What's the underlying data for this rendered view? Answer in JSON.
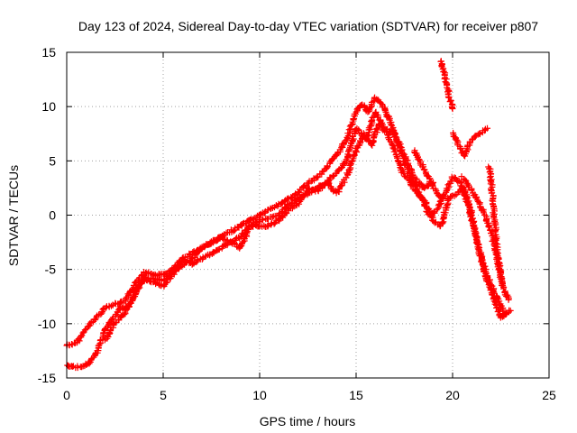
{
  "chart_data": {
    "type": "scatter",
    "title": "Day 123 of 2024, Sidereal Day-to-day VTEC variation (SDTVAR) for receiver p807",
    "xlabel": "GPS time / hours",
    "ylabel": "SDTVAR / TECUs",
    "xlim": [
      0,
      25
    ],
    "ylim": [
      -15,
      15
    ],
    "xticks": [
      "0",
      "5",
      "10",
      "15",
      "20",
      "25"
    ],
    "yticks": [
      "15",
      "10",
      "5",
      "0",
      "-5",
      "-10",
      "-15"
    ],
    "grid": true,
    "marker": "+",
    "color": "#ff0000",
    "series": [
      {
        "points": [
          [
            0.0,
            -12.0
          ],
          [
            0.5,
            -11.8
          ],
          [
            1.0,
            -10.5
          ],
          [
            1.5,
            -9.5
          ],
          [
            2.0,
            -8.5
          ],
          [
            2.5,
            -8.2
          ],
          [
            3.0,
            -8.0
          ],
          [
            3.5,
            -6.5
          ],
          [
            4.0,
            -5.2
          ],
          [
            4.5,
            -5.5
          ],
          [
            5.0,
            -5.5
          ],
          [
            5.5,
            -5.0
          ],
          [
            6.0,
            -4.0
          ],
          [
            6.5,
            -3.5
          ],
          [
            7.0,
            -3.0
          ],
          [
            7.5,
            -2.5
          ],
          [
            8.0,
            -2.0
          ],
          [
            8.5,
            -1.5
          ],
          [
            9.0,
            -1.0
          ],
          [
            9.5,
            -0.5
          ],
          [
            10.0,
            0.0
          ],
          [
            10.5,
            0.5
          ],
          [
            11.0,
            1.0
          ],
          [
            11.5,
            1.5
          ],
          [
            12.0,
            2.0
          ],
          [
            12.5,
            3.0
          ],
          [
            13.0,
            3.5
          ],
          [
            13.5,
            4.5
          ],
          [
            14.0,
            5.5
          ],
          [
            14.5,
            7.0
          ],
          [
            15.0,
            9.5
          ],
          [
            15.3,
            10.2
          ],
          [
            15.6,
            9.5
          ],
          [
            16.0,
            10.8
          ],
          [
            16.4,
            10.0
          ],
          [
            16.8,
            8.5
          ],
          [
            17.2,
            6.5
          ],
          [
            17.6,
            4.5
          ],
          [
            18.0,
            3.0
          ],
          [
            18.4,
            1.5
          ],
          [
            18.8,
            0.0
          ],
          [
            19.2,
            0.5
          ],
          [
            19.6,
            2.0
          ],
          [
            20.0,
            3.5
          ],
          [
            20.4,
            3.0
          ],
          [
            20.8,
            1.0
          ],
          [
            21.2,
            -2.0
          ],
          [
            21.6,
            -4.5
          ],
          [
            22.0,
            -6.5
          ],
          [
            22.4,
            -8.0
          ],
          [
            22.7,
            -9.2
          ],
          [
            23.0,
            -8.8
          ]
        ]
      },
      {
        "points": [
          [
            0.0,
            -13.8
          ],
          [
            0.4,
            -14.0
          ],
          [
            0.8,
            -14.0
          ],
          [
            1.2,
            -13.6
          ],
          [
            1.6,
            -12.5
          ],
          [
            2.0,
            -10.5
          ],
          [
            2.4,
            -9.5
          ],
          [
            2.8,
            -8.5
          ],
          [
            3.2,
            -8.5
          ],
          [
            3.6,
            -6.8
          ],
          [
            4.0,
            -6.0
          ],
          [
            4.5,
            -6.2
          ],
          [
            5.0,
            -6.5
          ],
          [
            5.5,
            -5.5
          ],
          [
            6.0,
            -4.2
          ],
          [
            6.5,
            -4.5
          ],
          [
            7.0,
            -4.0
          ],
          [
            7.5,
            -3.5
          ],
          [
            8.0,
            -3.0
          ],
          [
            8.5,
            -2.5
          ],
          [
            9.0,
            -2.0
          ],
          [
            9.5,
            -1.0
          ],
          [
            10.0,
            -1.0
          ],
          [
            10.5,
            -1.0
          ],
          [
            11.0,
            -0.5
          ],
          [
            11.5,
            0.5
          ],
          [
            12.0,
            1.0
          ],
          [
            12.5,
            2.5
          ],
          [
            13.0,
            2.2
          ],
          [
            13.5,
            3.0
          ],
          [
            14.0,
            2.0
          ],
          [
            14.5,
            3.5
          ],
          [
            15.0,
            6.0
          ],
          [
            15.4,
            7.5
          ],
          [
            15.8,
            6.5
          ],
          [
            16.2,
            8.5
          ],
          [
            16.6,
            7.5
          ],
          [
            17.0,
            6.0
          ],
          [
            17.4,
            4.0
          ],
          [
            17.8,
            3.0
          ],
          [
            18.2,
            2.0
          ],
          [
            18.6,
            1.2
          ],
          [
            19.0,
            -0.5
          ],
          [
            19.4,
            -1.0
          ],
          [
            19.8,
            1.5
          ],
          [
            20.2,
            2.0
          ],
          [
            20.6,
            2.5
          ],
          [
            21.0,
            0.0
          ],
          [
            21.4,
            -3.5
          ],
          [
            21.8,
            -6.0
          ],
          [
            22.2,
            -8.0
          ],
          [
            22.5,
            -9.5
          ],
          [
            22.8,
            -9.0
          ]
        ]
      },
      {
        "points": [
          [
            2.0,
            -11.5
          ],
          [
            2.5,
            -10.0
          ],
          [
            3.0,
            -9.0
          ],
          [
            3.5,
            -7.5
          ],
          [
            4.0,
            -5.8
          ],
          [
            5.0,
            -6.0
          ],
          [
            5.5,
            -5.2
          ],
          [
            6.5,
            -4.0
          ],
          [
            7.0,
            -3.0
          ],
          [
            7.5,
            -2.5
          ],
          [
            8.0,
            -2.0
          ],
          [
            8.5,
            -2.5
          ],
          [
            9.0,
            -3.0
          ],
          [
            9.5,
            -1.0
          ],
          [
            10.0,
            -0.5
          ],
          [
            11.0,
            0.0
          ],
          [
            11.5,
            1.0
          ],
          [
            12.0,
            1.5
          ],
          [
            12.5,
            2.0
          ],
          [
            13.0,
            2.5
          ],
          [
            13.5,
            3.0
          ],
          [
            14.0,
            4.0
          ],
          [
            14.5,
            5.0
          ],
          [
            15.0,
            8.0
          ],
          [
            15.5,
            7.0
          ],
          [
            16.0,
            9.5
          ],
          [
            16.5,
            8.0
          ],
          [
            17.0,
            7.5
          ],
          [
            17.5,
            5.5
          ],
          [
            18.0,
            3.5
          ],
          [
            18.5,
            2.5
          ],
          [
            19.0,
            3.0
          ]
        ]
      },
      {
        "points": [
          [
            18.0,
            6.0
          ],
          [
            18.3,
            5.0
          ],
          [
            18.6,
            4.0
          ],
          [
            18.9,
            3.0
          ],
          [
            19.2,
            2.0
          ],
          [
            19.5,
            1.5
          ]
        ]
      },
      {
        "points": [
          [
            19.4,
            14.2
          ],
          [
            19.5,
            13.5
          ],
          [
            19.6,
            12.8
          ],
          [
            19.7,
            12.0
          ],
          [
            19.8,
            11.2
          ],
          [
            19.9,
            10.5
          ],
          [
            20.0,
            9.8
          ]
        ]
      },
      {
        "points": [
          [
            20.0,
            7.5
          ],
          [
            20.3,
            6.5
          ],
          [
            20.6,
            5.5
          ],
          [
            21.0,
            7.0
          ],
          [
            21.4,
            7.5
          ],
          [
            21.8,
            8.0
          ]
        ]
      },
      {
        "points": [
          [
            21.9,
            4.5
          ],
          [
            22.0,
            3.0
          ],
          [
            22.1,
            1.0
          ],
          [
            22.2,
            -1.0
          ],
          [
            22.3,
            -3.0
          ],
          [
            22.4,
            -4.5
          ],
          [
            22.5,
            -5.5
          ],
          [
            22.6,
            -6.5
          ]
        ]
      },
      {
        "points": [
          [
            20.5,
            3.5
          ],
          [
            20.9,
            2.5
          ],
          [
            21.3,
            1.5
          ],
          [
            21.7,
            0.0
          ],
          [
            22.0,
            -1.5
          ],
          [
            22.3,
            -4.0
          ],
          [
            22.6,
            -6.5
          ],
          [
            22.9,
            -7.8
          ]
        ]
      }
    ]
  }
}
